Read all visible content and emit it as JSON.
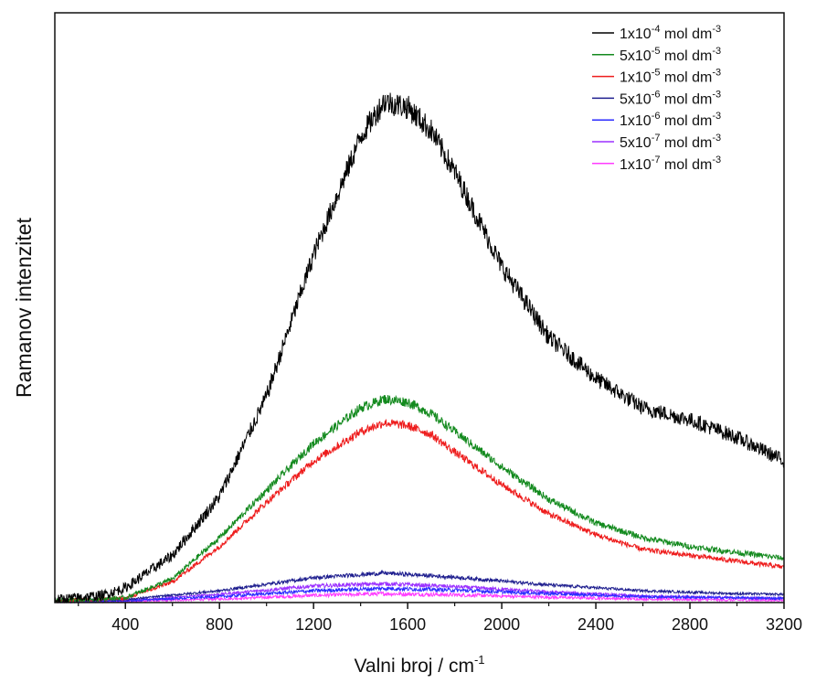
{
  "chart_data": {
    "type": "line",
    "xlabel": "Valni broj / cm",
    "xlabel_sup": "-1",
    "ylabel": "Ramanov intenzitet",
    "xlim": [
      100,
      3200
    ],
    "ylim": [
      0,
      100
    ],
    "x_ticks": [
      400,
      800,
      1200,
      1600,
      2000,
      2400,
      2800,
      3200
    ],
    "y_tick_labels": "none",
    "legend_position": "top-right",
    "grid": false,
    "series": [
      {
        "name_base": "1x10",
        "name_exp": "-4",
        "name_unit": "mol dm",
        "name_unit_exp": "-3",
        "color": "#000000",
        "x": [
          100,
          300,
          400,
          600,
          800,
          1000,
          1200,
          1400,
          1500,
          1600,
          1700,
          1800,
          2000,
          2200,
          2400,
          2600,
          2800,
          3000,
          3200
        ],
        "y": [
          0.5,
          1.2,
          2.5,
          8,
          18,
          35,
          59,
          79,
          85,
          84,
          80,
          73,
          57,
          45,
          38,
          33,
          31,
          28,
          24
        ]
      },
      {
        "name_base": "5x10",
        "name_exp": "-5",
        "name_unit": "mol dm",
        "name_unit_exp": "-3",
        "color": "#138a1e",
        "x": [
          100,
          400,
          600,
          800,
          1000,
          1200,
          1400,
          1500,
          1600,
          1700,
          1800,
          2000,
          2200,
          2400,
          2600,
          2800,
          3000,
          3200
        ],
        "y": [
          0.3,
          0.8,
          4,
          11,
          19,
          27,
          33,
          34.5,
          34,
          32,
          29,
          23,
          17.5,
          13.5,
          11,
          9.5,
          8.5,
          7.5
        ]
      },
      {
        "name_base": "1x10",
        "name_exp": "-5",
        "name_unit": "mol dm",
        "name_unit_exp": "-3",
        "color": "#ee1c1c",
        "x": [
          100,
          400,
          600,
          800,
          1000,
          1200,
          1400,
          1500,
          1600,
          1700,
          1800,
          2000,
          2200,
          2400,
          2600,
          2800,
          3000,
          3200
        ],
        "y": [
          0.3,
          0.7,
          3.5,
          9.5,
          17,
          24,
          29,
          30.5,
          30,
          28.5,
          25.5,
          20,
          15,
          11.5,
          9,
          8,
          7,
          6
        ]
      },
      {
        "name_base": "5x10",
        "name_exp": "-6",
        "name_unit": "mol dm",
        "name_unit_exp": "-3",
        "color": "#1f1f8f",
        "x": [
          100,
          400,
          800,
          1200,
          1500,
          1800,
          2200,
          2600,
          3000,
          3200
        ],
        "y": [
          0.2,
          0.5,
          2,
          4.2,
          5,
          4.3,
          3,
          2,
          1.5,
          1.4
        ]
      },
      {
        "name_base": "1x10",
        "name_exp": "-6",
        "name_unit": "mol dm",
        "name_unit_exp": "-3",
        "color": "#2b2bff",
        "x": [
          100,
          400,
          800,
          1200,
          1500,
          1800,
          2200,
          2600,
          3000,
          3200
        ],
        "y": [
          0.1,
          0.3,
          1,
          2,
          2.4,
          2.1,
          1.5,
          1,
          0.8,
          0.7
        ]
      },
      {
        "name_base": "5x10",
        "name_exp": "-7",
        "name_unit": "mol dm",
        "name_unit_exp": "-3",
        "color": "#9b30ff",
        "x": [
          100,
          400,
          800,
          1200,
          1500,
          1800,
          2200,
          2600,
          3000,
          3200
        ],
        "y": [
          0.1,
          0.3,
          1.4,
          2.8,
          3.2,
          2.7,
          1.8,
          1.1,
          0.8,
          0.7
        ]
      },
      {
        "name_base": "1x10",
        "name_exp": "-7",
        "name_unit": "mol dm",
        "name_unit_exp": "-3",
        "color": "#ff3cff",
        "x": [
          100,
          400,
          800,
          1200,
          1500,
          1800,
          2200,
          2600,
          3000,
          3200
        ],
        "y": [
          0,
          0.2,
          0.6,
          1.2,
          1.5,
          1.3,
          0.9,
          0.6,
          0.4,
          0.4
        ]
      }
    ]
  }
}
